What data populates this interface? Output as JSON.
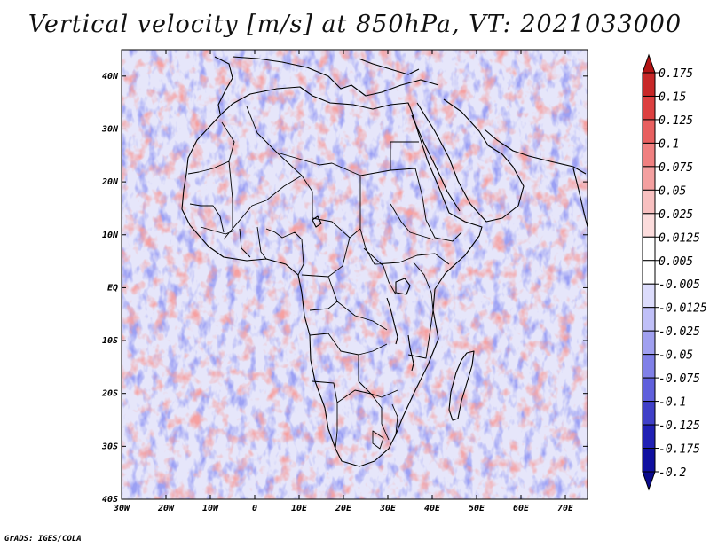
{
  "title": "Vertical velocity [m/s] at 850hPa, VT: 2021033000",
  "credit": "GrADS: IGES/COLA",
  "map": {
    "lon_range": [
      -30,
      75
    ],
    "lat_range": [
      -40,
      45
    ],
    "lat_ticks": [
      "40N",
      "30N",
      "20N",
      "10N",
      "EQ",
      "10S",
      "20S",
      "30S",
      "40S"
    ],
    "lon_ticks": [
      "30W",
      "20W",
      "10W",
      "0",
      "10E",
      "20E",
      "30E",
      "40E",
      "50E",
      "60E",
      "70E"
    ]
  },
  "colorbar": {
    "labels": [
      "0.175",
      "0.15",
      "0.125",
      "0.1",
      "0.075",
      "0.05",
      "0.025",
      "0.0125",
      "0.005",
      "-0.005",
      "-0.0125",
      "-0.025",
      "-0.05",
      "-0.075",
      "-0.1",
      "-0.125",
      "-0.175",
      "-0.2"
    ],
    "colors": [
      "#b41414",
      "#c82828",
      "#dc4040",
      "#e86060",
      "#f08080",
      "#f4a0a0",
      "#f8c0c0",
      "#fcdcdc",
      "#ffffff",
      "#ffffff",
      "#dcdcfc",
      "#c0c0f8",
      "#a0a0f0",
      "#8080e8",
      "#6060dc",
      "#4040c8",
      "#2020b4",
      "#1010a0",
      "#0a0a8c"
    ]
  }
}
